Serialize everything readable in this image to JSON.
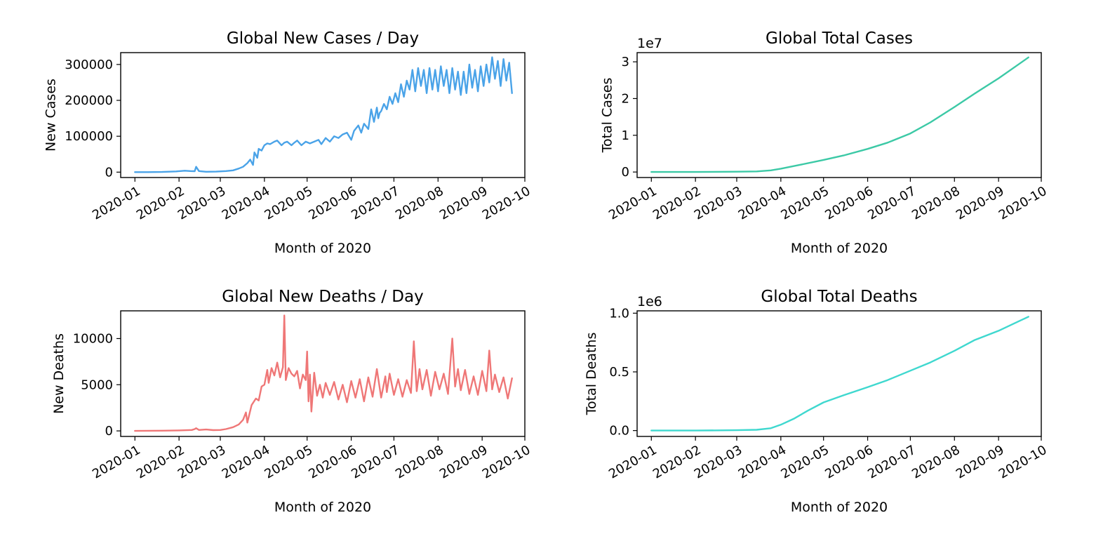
{
  "colors": {
    "new_cases": "#4aa3e8",
    "total_cases": "#3cc9a6",
    "new_deaths": "#ef7777",
    "total_deaths": "#3fd8cf"
  },
  "chart_data": [
    {
      "id": "new_cases",
      "type": "line",
      "title": "Global New Cases / Day",
      "xlabel": "Month of 2020",
      "ylabel": "New Cases",
      "offset_label": "",
      "color": "#4aa3e8",
      "xticks": [
        "2020-01",
        "2020-02",
        "2020-03",
        "2020-04",
        "2020-05",
        "2020-06",
        "2020-07",
        "2020-08",
        "2020-09",
        "2020-10"
      ],
      "yticks": [
        0,
        100000,
        200000,
        300000
      ],
      "ylim": [
        -15000,
        333000
      ],
      "xlim": [
        "2019-12-22",
        "2020-10-01"
      ],
      "grid": false,
      "series": [
        {
          "x": [
            "2020-01-01",
            "2020-01-10",
            "2020-01-20",
            "2020-01-30",
            "2020-02-05",
            "2020-02-09",
            "2020-02-12",
            "2020-02-13",
            "2020-02-15",
            "2020-02-20",
            "2020-02-27",
            "2020-03-05",
            "2020-03-10",
            "2020-03-14",
            "2020-03-17",
            "2020-03-20",
            "2020-03-22",
            "2020-03-24",
            "2020-03-25",
            "2020-03-27",
            "2020-03-28",
            "2020-03-30",
            "2020-04-01",
            "2020-04-03",
            "2020-04-05",
            "2020-04-08",
            "2020-04-10",
            "2020-04-13",
            "2020-04-15",
            "2020-04-17",
            "2020-04-20",
            "2020-04-22",
            "2020-04-24",
            "2020-04-27",
            "2020-04-30",
            "2020-05-03",
            "2020-05-06",
            "2020-05-09",
            "2020-05-11",
            "2020-05-14",
            "2020-05-17",
            "2020-05-20",
            "2020-05-23",
            "2020-05-26",
            "2020-05-29",
            "2020-06-01",
            "2020-06-03",
            "2020-06-06",
            "2020-06-08",
            "2020-06-10",
            "2020-06-13",
            "2020-06-15",
            "2020-06-17",
            "2020-06-19",
            "2020-06-20",
            "2020-06-21",
            "2020-06-22",
            "2020-06-24",
            "2020-06-26",
            "2020-06-28",
            "2020-06-30",
            "2020-07-02",
            "2020-07-04",
            "2020-07-06",
            "2020-07-08",
            "2020-07-10",
            "2020-07-12",
            "2020-07-14",
            "2020-07-16",
            "2020-07-18",
            "2020-07-20",
            "2020-07-22",
            "2020-07-24",
            "2020-07-26",
            "2020-07-28",
            "2020-07-30",
            "2020-08-01",
            "2020-08-03",
            "2020-08-05",
            "2020-08-07",
            "2020-08-09",
            "2020-08-11",
            "2020-08-13",
            "2020-08-15",
            "2020-08-17",
            "2020-08-19",
            "2020-08-21",
            "2020-08-23",
            "2020-08-25",
            "2020-08-27",
            "2020-08-29",
            "2020-08-31",
            "2020-09-02",
            "2020-09-04",
            "2020-09-06",
            "2020-09-08",
            "2020-09-10",
            "2020-09-12",
            "2020-09-14",
            "2020-09-16",
            "2020-09-18",
            "2020-09-20",
            "2020-09-22"
          ],
          "y": [
            0,
            0,
            500,
            2000,
            4000,
            3000,
            2500,
            15000,
            3000,
            1000,
            1500,
            3000,
            5000,
            10000,
            15000,
            25000,
            35000,
            20000,
            55000,
            40000,
            65000,
            60000,
            75000,
            80000,
            78000,
            85000,
            88000,
            75000,
            82000,
            85000,
            75000,
            82000,
            88000,
            75000,
            85000,
            80000,
            85000,
            90000,
            78000,
            95000,
            85000,
            100000,
            95000,
            105000,
            110000,
            90000,
            115000,
            130000,
            110000,
            135000,
            120000,
            175000,
            140000,
            180000,
            150000,
            165000,
            170000,
            190000,
            175000,
            210000,
            190000,
            220000,
            195000,
            245000,
            210000,
            255000,
            230000,
            285000,
            225000,
            290000,
            240000,
            285000,
            220000,
            290000,
            230000,
            285000,
            225000,
            295000,
            240000,
            285000,
            220000,
            290000,
            230000,
            280000,
            215000,
            280000,
            220000,
            300000,
            235000,
            285000,
            225000,
            295000,
            240000,
            300000,
            250000,
            320000,
            260000,
            310000,
            240000,
            315000,
            255000,
            305000,
            220000
          ]
        }
      ]
    },
    {
      "id": "total_cases",
      "type": "line",
      "title": "Global Total Cases",
      "xlabel": "Month of 2020",
      "ylabel": "Total Cases",
      "offset_label": "1e7",
      "color": "#3cc9a6",
      "xticks": [
        "2020-01",
        "2020-02",
        "2020-03",
        "2020-04",
        "2020-05",
        "2020-06",
        "2020-07",
        "2020-08",
        "2020-09",
        "2020-10"
      ],
      "yticks": [
        0,
        1,
        2,
        3
      ],
      "ylim": [
        -0.15,
        3.25
      ],
      "xlim": [
        "2019-12-22",
        "2020-10-01"
      ],
      "grid": false,
      "series": [
        {
          "x": [
            "2020-01-01",
            "2020-02-01",
            "2020-03-01",
            "2020-03-15",
            "2020-03-25",
            "2020-04-01",
            "2020-04-15",
            "2020-05-01",
            "2020-05-15",
            "2020-06-01",
            "2020-06-15",
            "2020-07-01",
            "2020-07-15",
            "2020-08-01",
            "2020-08-15",
            "2020-09-01",
            "2020-09-15",
            "2020-09-22"
          ],
          "y": [
            0,
            0.001,
            0.009,
            0.017,
            0.045,
            0.09,
            0.2,
            0.33,
            0.45,
            0.63,
            0.8,
            1.05,
            1.35,
            1.77,
            2.13,
            2.55,
            2.93,
            3.12
          ]
        }
      ]
    },
    {
      "id": "new_deaths",
      "type": "line",
      "title": "Global New Deaths / Day",
      "xlabel": "Month of 2020",
      "ylabel": "New Deaths",
      "offset_label": "",
      "color": "#ef7777",
      "xticks": [
        "2020-01",
        "2020-02",
        "2020-03",
        "2020-04",
        "2020-05",
        "2020-06",
        "2020-07",
        "2020-08",
        "2020-09",
        "2020-10"
      ],
      "yticks": [
        0,
        5000,
        10000
      ],
      "ylim": [
        -600,
        13000
      ],
      "xlim": [
        "2019-12-22",
        "2020-10-01"
      ],
      "grid": false,
      "series": [
        {
          "x": [
            "2020-01-01",
            "2020-01-20",
            "2020-02-01",
            "2020-02-10",
            "2020-02-12",
            "2020-02-13",
            "2020-02-15",
            "2020-02-20",
            "2020-02-25",
            "2020-03-01",
            "2020-03-05",
            "2020-03-10",
            "2020-03-14",
            "2020-03-17",
            "2020-03-19",
            "2020-03-20",
            "2020-03-23",
            "2020-03-26",
            "2020-03-28",
            "2020-03-30",
            "2020-04-01",
            "2020-04-03",
            "2020-04-04",
            "2020-04-06",
            "2020-04-08",
            "2020-04-10",
            "2020-04-12",
            "2020-04-14",
            "2020-04-15",
            "2020-04-16",
            "2020-04-18",
            "2020-04-20",
            "2020-04-22",
            "2020-04-24",
            "2020-04-26",
            "2020-04-28",
            "2020-04-30",
            "2020-05-01",
            "2020-05-02",
            "2020-05-03",
            "2020-05-04",
            "2020-05-06",
            "2020-05-08",
            "2020-05-10",
            "2020-05-12",
            "2020-05-14",
            "2020-05-17",
            "2020-05-20",
            "2020-05-23",
            "2020-05-26",
            "2020-05-29",
            "2020-06-01",
            "2020-06-04",
            "2020-06-07",
            "2020-06-10",
            "2020-06-13",
            "2020-06-16",
            "2020-06-19",
            "2020-06-22",
            "2020-06-25",
            "2020-06-26",
            "2020-06-28",
            "2020-07-01",
            "2020-07-04",
            "2020-07-07",
            "2020-07-10",
            "2020-07-13",
            "2020-07-15",
            "2020-07-17",
            "2020-07-19",
            "2020-07-21",
            "2020-07-24",
            "2020-07-27",
            "2020-07-30",
            "2020-08-02",
            "2020-08-05",
            "2020-08-08",
            "2020-08-11",
            "2020-08-13",
            "2020-08-15",
            "2020-08-17",
            "2020-08-20",
            "2020-08-23",
            "2020-08-26",
            "2020-08-29",
            "2020-09-01",
            "2020-09-04",
            "2020-09-06",
            "2020-09-08",
            "2020-09-10",
            "2020-09-13",
            "2020-09-16",
            "2020-09-19",
            "2020-09-22"
          ],
          "y": [
            0,
            20,
            50,
            100,
            200,
            300,
            100,
            150,
            80,
            100,
            200,
            400,
            700,
            1200,
            2000,
            900,
            2800,
            3500,
            3300,
            4800,
            5000,
            6600,
            5200,
            6800,
            6000,
            7400,
            5800,
            6900,
            12500,
            5500,
            6800,
            6200,
            5900,
            6500,
            4600,
            6100,
            5500,
            8600,
            3200,
            6100,
            2100,
            6300,
            3800,
            5000,
            3600,
            5200,
            3900,
            5300,
            3400,
            5000,
            3100,
            5400,
            3600,
            5600,
            3200,
            5800,
            3700,
            6700,
            3600,
            5900,
            4200,
            6200,
            3900,
            5600,
            3700,
            5500,
            4100,
            9700,
            4300,
            6700,
            4500,
            6600,
            3800,
            6400,
            4500,
            6200,
            4000,
            10000,
            4800,
            6700,
            4400,
            6600,
            4000,
            5900,
            3900,
            6500,
            4300,
            8700,
            4500,
            6100,
            4200,
            5800,
            3500,
            5700
          ]
        }
      ]
    },
    {
      "id": "total_deaths",
      "type": "line",
      "title": "Global Total Deaths",
      "xlabel": "Month of 2020",
      "ylabel": "Total Deaths",
      "offset_label": "1e6",
      "color": "#3fd8cf",
      "xticks": [
        "2020-01",
        "2020-02",
        "2020-03",
        "2020-04",
        "2020-05",
        "2020-06",
        "2020-07",
        "2020-08",
        "2020-09",
        "2020-10"
      ],
      "yticks": [
        "0.0",
        "0.5",
        "1.0"
      ],
      "ylim": [
        -0.05,
        1.02
      ],
      "xlim": [
        "2019-12-22",
        "2020-10-01"
      ],
      "grid": false,
      "series": [
        {
          "x": [
            "2020-01-01",
            "2020-02-01",
            "2020-03-01",
            "2020-03-15",
            "2020-03-25",
            "2020-04-01",
            "2020-04-10",
            "2020-04-20",
            "2020-05-01",
            "2020-05-15",
            "2020-06-01",
            "2020-06-15",
            "2020-07-01",
            "2020-07-15",
            "2020-08-01",
            "2020-08-15",
            "2020-09-01",
            "2020-09-15",
            "2020-09-22"
          ],
          "y": [
            0,
            0.0002,
            0.003,
            0.007,
            0.02,
            0.05,
            0.1,
            0.17,
            0.24,
            0.3,
            0.37,
            0.43,
            0.51,
            0.58,
            0.68,
            0.77,
            0.85,
            0.93,
            0.97
          ]
        }
      ]
    }
  ]
}
